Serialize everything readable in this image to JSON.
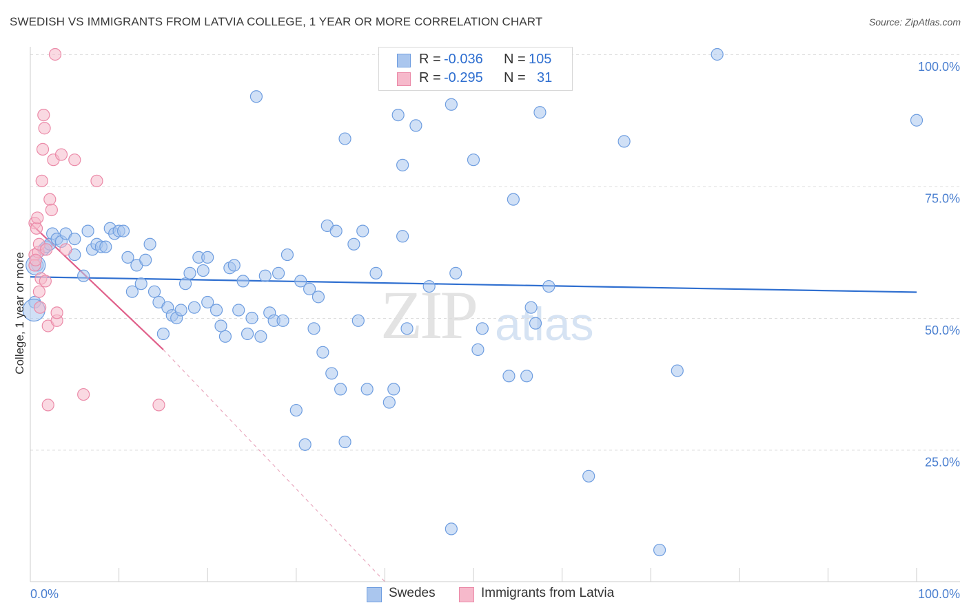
{
  "title": "SWEDISH VS IMMIGRANTS FROM LATVIA COLLEGE, 1 YEAR OR MORE CORRELATION CHART",
  "source": "Source: ZipAtlas.com",
  "watermark": {
    "part1": "ZIP",
    "part2": "atlas"
  },
  "legend": {
    "r_label": "R =",
    "n_label": "N =",
    "rows": [
      {
        "r": "-0.036",
        "n": "105"
      },
      {
        "r": "-0.295",
        "n": "31"
      }
    ]
  },
  "bottom_legend": [
    "Swedes",
    "Immigrants from Latvia"
  ],
  "colors": {
    "blue_fill": "#aac6ee",
    "blue_stroke": "#6f9ee0",
    "blue_line": "#2f6fd0",
    "pink_fill": "#f6b9cb",
    "pink_stroke": "#eb8aa8",
    "pink_line": "#e0608a",
    "tick_text": "#4a7fd0"
  },
  "chart_data": {
    "type": "scatter",
    "title": "SWEDISH VS IMMIGRANTS FROM LATVIA COLLEGE, 1 YEAR OR MORE CORRELATION CHART",
    "xlabel": "",
    "ylabel": "College, 1 year or more",
    "xlim": [
      0,
      100
    ],
    "ylim": [
      0,
      100
    ],
    "x_ticks": [
      "0.0%",
      "100.0%"
    ],
    "y_ticks": [
      "25.0%",
      "50.0%",
      "75.0%",
      "100.0%"
    ],
    "y_tick_values": [
      25,
      50,
      75,
      100
    ],
    "grid": true,
    "legend_position": "top-center",
    "series": [
      {
        "name": "Swedes",
        "color": "#aac6ee",
        "r": -0.036,
        "n": 105,
        "trend": {
          "x": [
            0,
            100
          ],
          "y": [
            57.8,
            54.9
          ]
        },
        "points": [
          [
            0.5,
            53
          ],
          [
            0.8,
            60
          ],
          [
            1.5,
            63
          ],
          [
            1.8,
            63.5
          ],
          [
            2.2,
            64
          ],
          [
            2.5,
            66
          ],
          [
            3,
            65
          ],
          [
            3.5,
            64.5
          ],
          [
            4,
            66
          ],
          [
            5,
            65
          ],
          [
            5,
            62
          ],
          [
            6,
            58
          ],
          [
            6.5,
            66.5
          ],
          [
            7,
            63
          ],
          [
            7.5,
            64
          ],
          [
            8,
            63.5
          ],
          [
            8.5,
            63.5
          ],
          [
            9,
            67
          ],
          [
            9.5,
            66
          ],
          [
            10,
            66.5
          ],
          [
            10.5,
            66.5
          ],
          [
            11,
            61.5
          ],
          [
            11.5,
            55
          ],
          [
            12,
            60
          ],
          [
            12.5,
            56.5
          ],
          [
            13,
            61
          ],
          [
            13.5,
            64
          ],
          [
            14,
            55
          ],
          [
            14.5,
            53
          ],
          [
            15,
            47
          ],
          [
            15.5,
            52
          ],
          [
            16,
            50.5
          ],
          [
            16.5,
            50
          ],
          [
            17,
            51.5
          ],
          [
            17.5,
            56.5
          ],
          [
            18,
            58.5
          ],
          [
            18.5,
            52
          ],
          [
            19,
            61.5
          ],
          [
            19.5,
            59
          ],
          [
            20,
            61.5
          ],
          [
            20,
            53
          ],
          [
            21,
            51.5
          ],
          [
            21.5,
            48.5
          ],
          [
            22,
            46.5
          ],
          [
            22.5,
            59.5
          ],
          [
            23,
            60
          ],
          [
            23.5,
            51.5
          ],
          [
            24,
            57
          ],
          [
            24.5,
            47
          ],
          [
            25,
            50
          ],
          [
            25.5,
            92
          ],
          [
            26,
            46.5
          ],
          [
            26.5,
            58
          ],
          [
            27,
            51
          ],
          [
            27.5,
            49.5
          ],
          [
            28,
            58.5
          ],
          [
            28.5,
            49.5
          ],
          [
            29,
            62
          ],
          [
            30,
            32.5
          ],
          [
            30.5,
            57
          ],
          [
            31,
            26
          ],
          [
            31.5,
            55.5
          ],
          [
            32,
            48
          ],
          [
            32.5,
            54
          ],
          [
            33,
            43.5
          ],
          [
            33.5,
            67.5
          ],
          [
            34,
            39.5
          ],
          [
            34.5,
            66.5
          ],
          [
            35,
            36.5
          ],
          [
            35.5,
            26.5
          ],
          [
            35.5,
            84
          ],
          [
            36.5,
            64
          ],
          [
            37,
            49.5
          ],
          [
            37.5,
            66.5
          ],
          [
            38,
            36.5
          ],
          [
            39,
            58.5
          ],
          [
            40.5,
            34
          ],
          [
            41,
            36.5
          ],
          [
            41.5,
            88.5
          ],
          [
            42,
            79
          ],
          [
            42,
            65.5
          ],
          [
            42.5,
            48
          ],
          [
            43.5,
            86.5
          ],
          [
            45,
            56
          ],
          [
            47.5,
            10
          ],
          [
            47.5,
            90.5
          ],
          [
            48,
            58.5
          ],
          [
            50,
            80
          ],
          [
            50.5,
            44
          ],
          [
            51,
            48
          ],
          [
            54,
            39
          ],
          [
            54.5,
            72.5
          ],
          [
            56,
            39
          ],
          [
            56.5,
            52
          ],
          [
            57,
            49
          ],
          [
            57.5,
            89
          ],
          [
            58.5,
            56
          ],
          [
            63,
            20
          ],
          [
            67,
            83.5
          ],
          [
            71,
            6
          ],
          [
            73,
            40
          ],
          [
            77.5,
            100
          ],
          [
            100,
            87.5
          ]
        ]
      },
      {
        "name": "Immigrants from Latvia",
        "color": "#f6b9cb",
        "r": -0.295,
        "n": 31,
        "trend": {
          "x": [
            0,
            15
          ],
          "y": [
            68,
            44
          ]
        },
        "trend_dashed_extension": {
          "x": [
            15,
            40
          ],
          "y": [
            44,
            0
          ]
        },
        "points": [
          [
            0.5,
            62
          ],
          [
            0.5,
            60
          ],
          [
            0.5,
            68
          ],
          [
            0.7,
            67
          ],
          [
            0.8,
            69
          ],
          [
            0.9,
            62.5
          ],
          [
            1,
            64
          ],
          [
            1,
            55
          ],
          [
            1.1,
            52
          ],
          [
            1.2,
            57.5
          ],
          [
            1.3,
            76
          ],
          [
            1.4,
            82
          ],
          [
            1.5,
            88.5
          ],
          [
            1.6,
            86
          ],
          [
            1.7,
            57
          ],
          [
            2,
            33.5
          ],
          [
            2,
            48.5
          ],
          [
            2.2,
            72.5
          ],
          [
            2.4,
            70.5
          ],
          [
            2.6,
            80
          ],
          [
            2.8,
            100
          ],
          [
            3,
            49.5
          ],
          [
            3,
            51
          ],
          [
            3.5,
            81
          ],
          [
            4,
            63
          ],
          [
            5,
            80
          ],
          [
            6,
            35.5
          ],
          [
            7.5,
            76
          ],
          [
            14.5,
            33.5
          ],
          [
            1.8,
            63
          ],
          [
            0.6,
            61
          ]
        ]
      }
    ]
  }
}
